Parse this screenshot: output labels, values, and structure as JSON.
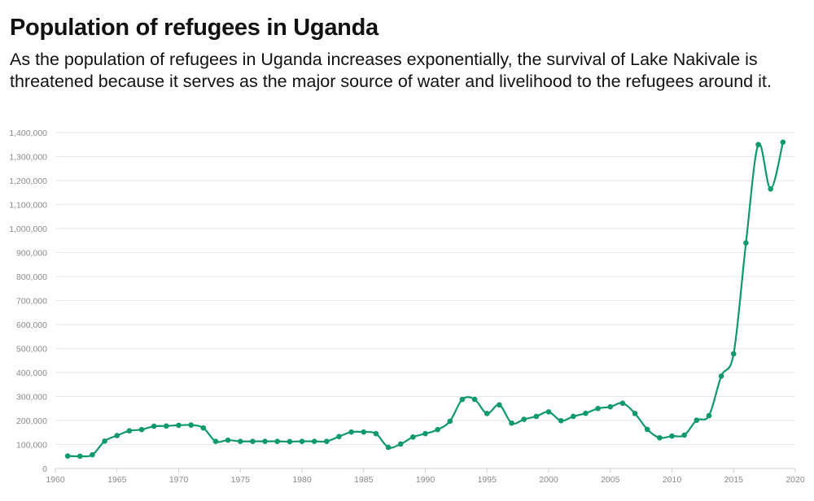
{
  "header": {
    "title": "Population of refugees in Uganda",
    "subtitle": "As the population of refugees in Uganda increases exponentially, the survival of Lake Nakivale is threatened because it serves as the major source of water and livelihood to the refugees around it."
  },
  "colors": {
    "line": "#10996a",
    "grid": "#e6e6e6",
    "axis_text": "#8a8a8a"
  },
  "chart_data": {
    "type": "line",
    "title": "Population of refugees in Uganda",
    "xlabel": "",
    "ylabel": "",
    "xlim": [
      1960,
      2020
    ],
    "ylim": [
      0,
      1400000
    ],
    "x_ticks": [
      1960,
      1965,
      1970,
      1975,
      1980,
      1985,
      1990,
      1995,
      2000,
      2005,
      2010,
      2015,
      2020
    ],
    "x_tick_labels": [
      "1960",
      "1965",
      "1970",
      "1975",
      "1980",
      "1985",
      "1990",
      "1995",
      "2000",
      "2005",
      "2010",
      "2015",
      "2020"
    ],
    "y_ticks": [
      0,
      100000,
      200000,
      300000,
      400000,
      500000,
      600000,
      700000,
      800000,
      900000,
      1000000,
      1100000,
      1200000,
      1300000,
      1400000
    ],
    "y_tick_labels": [
      "0",
      "100,000",
      "200,000",
      "300,000",
      "400,000",
      "500,000",
      "600,000",
      "700,000",
      "800,000",
      "900,000",
      "1,000,000",
      "1,100,000",
      "1,200,000",
      "1,300,000",
      "1,400,000"
    ],
    "grid": true,
    "legend": "none",
    "series": [
      {
        "x": [
          1961,
          1962,
          1963,
          1964,
          1965,
          1966,
          1967,
          1968,
          1969,
          1970,
          1971,
          1972,
          1973,
          1974,
          1975,
          1976,
          1977,
          1978,
          1979,
          1980,
          1981,
          1982,
          1983,
          1984,
          1985,
          1986,
          1987,
          1988,
          1989,
          1990,
          1991,
          1992,
          1993,
          1994,
          1995,
          1996,
          1997,
          1998,
          1999,
          2000,
          2001,
          2002,
          2003,
          2004,
          2005,
          2006,
          2007,
          2008,
          2009,
          2010,
          2011,
          2012,
          2013,
          2014,
          2015,
          2016,
          2017,
          2018,
          2019
        ],
        "values": [
          52000,
          51000,
          57000,
          114000,
          137000,
          157000,
          162000,
          176000,
          177000,
          180000,
          181000,
          169000,
          113000,
          118000,
          113000,
          113000,
          113000,
          113000,
          112000,
          113000,
          113000,
          113000,
          133000,
          152000,
          152000,
          145000,
          88000,
          102000,
          131000,
          145000,
          162000,
          197000,
          288000,
          288000,
          229000,
          265000,
          189000,
          205000,
          217000,
          236000,
          199000,
          217000,
          230000,
          250000,
          257000,
          272000,
          229000,
          163000,
          128000,
          135000,
          139000,
          201000,
          220000,
          385000,
          478000,
          940000,
          1350000,
          1165000,
          1360000
        ]
      }
    ]
  }
}
